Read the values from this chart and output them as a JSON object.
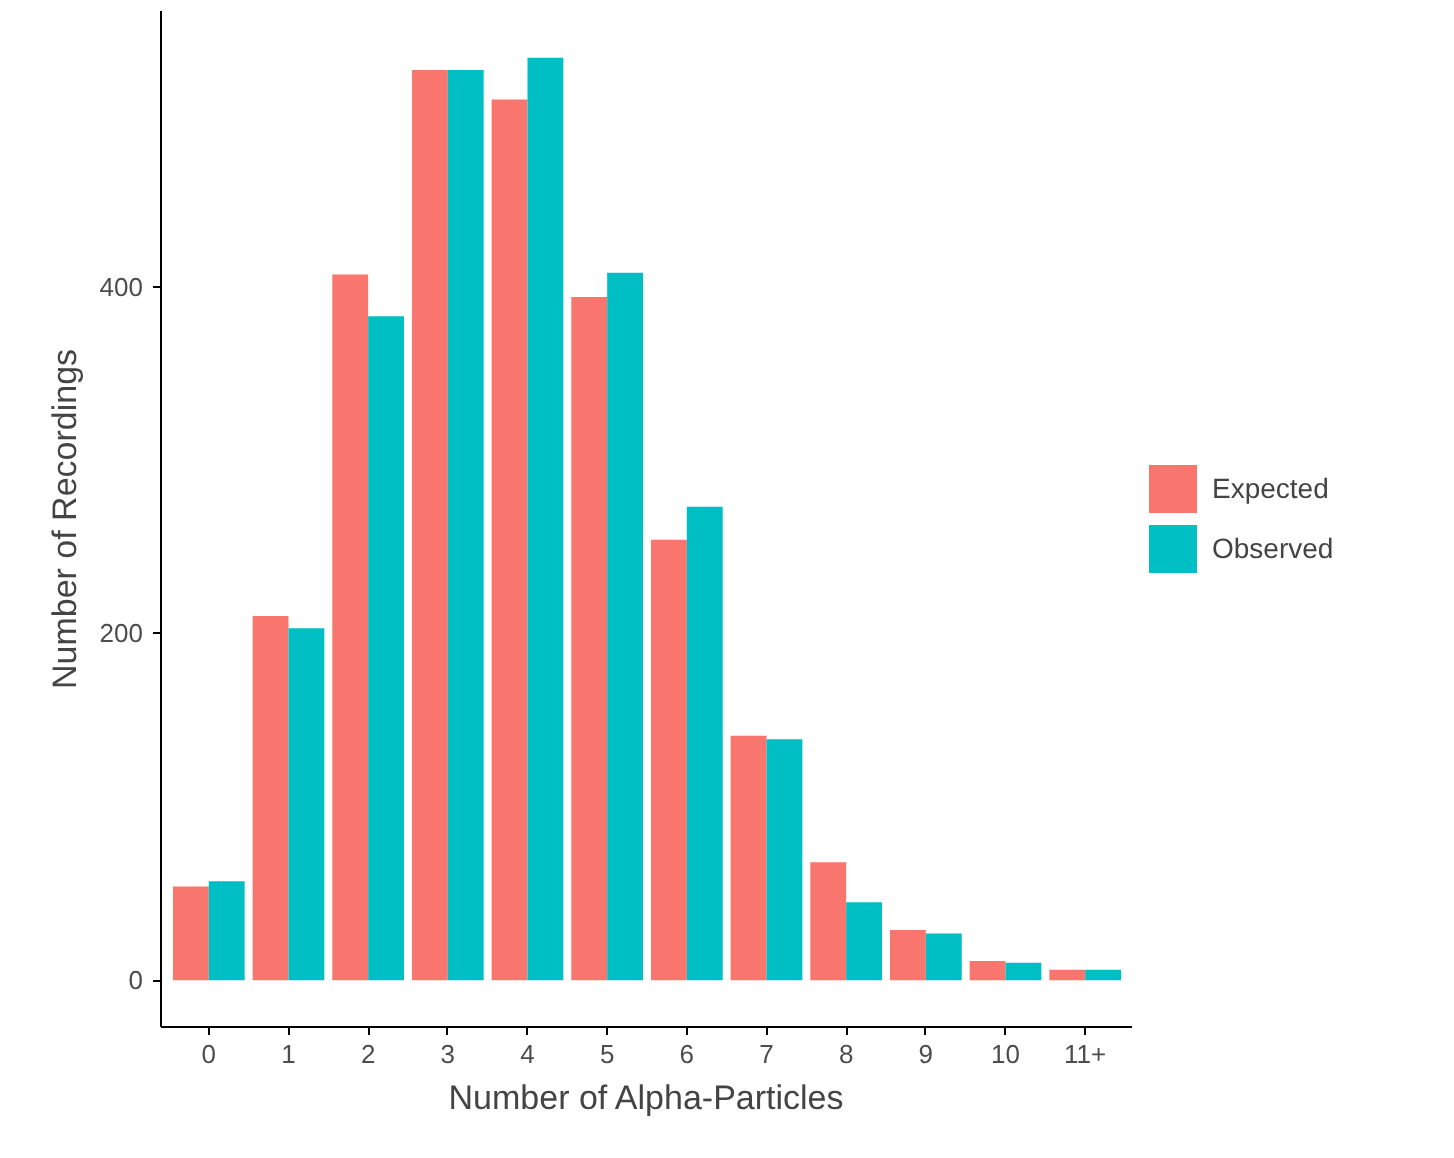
{
  "chart_data": {
    "type": "bar",
    "xlabel": "Number of Alpha-Particles",
    "ylabel": "Number of Recordings",
    "categories": [
      "0",
      "1",
      "2",
      "3",
      "4",
      "5",
      "6",
      "7",
      "8",
      "9",
      "10",
      "11+"
    ],
    "series": [
      {
        "name": "Expected",
        "color": "#f8766d",
        "values": [
          54,
          210,
          407,
          525,
          508,
          394,
          254,
          141,
          68,
          29,
          11,
          6
        ]
      },
      {
        "name": "Observed",
        "color": "#00bfc4",
        "values": [
          57,
          203,
          383,
          525,
          532,
          408,
          273,
          139,
          45,
          27,
          10,
          6
        ]
      }
    ],
    "ylim": [
      -27,
      559
    ],
    "yticks": [
      0,
      200,
      400
    ],
    "grid": false,
    "legend": "right"
  }
}
